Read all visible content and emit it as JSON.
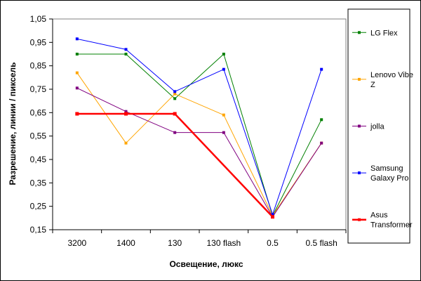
{
  "chart_data": {
    "type": "line",
    "title": "",
    "xlabel": "Освещение, люкс",
    "ylabel": "Разрешение, линии / пиксель",
    "categories": [
      "3200",
      "1400",
      "130",
      "130 flash",
      "0.5",
      "0.5 flash"
    ],
    "ylim": [
      0.15,
      1.05
    ],
    "yticks": [
      0.15,
      0.25,
      0.35,
      0.45,
      0.55,
      0.65,
      0.75,
      0.85,
      0.95,
      1.05
    ],
    "ytick_labels": [
      "0,15",
      "0,25",
      "0,35",
      "0,45",
      "0,55",
      "0,65",
      "0,75",
      "0,85",
      "0,95",
      "1,05"
    ],
    "grid": false,
    "legend_position": "right",
    "series": [
      {
        "name": "LG Flex",
        "color": "#008000",
        "marker": "square",
        "values": [
          0.9,
          0.9,
          0.71,
          0.9,
          0.21,
          0.62
        ]
      },
      {
        "name": "Lenovo Vibe Z",
        "legend_lines": [
          "Lenovo Vibe",
          "Z"
        ],
        "color": "#FFA500",
        "marker": "square",
        "values": [
          0.82,
          0.52,
          0.73,
          0.64,
          0.21,
          0.52
        ]
      },
      {
        "name": "jolla",
        "legend_lines": [
          "jolla"
        ],
        "color": "#800080",
        "marker": "square",
        "values": [
          0.755,
          0.655,
          0.565,
          0.565,
          0.205,
          0.52
        ]
      },
      {
        "name": "Samsung Galaxy Pro",
        "legend_lines": [
          "Samsung",
          "Galaxy Pro"
        ],
        "color": "#0000FF",
        "marker": "square",
        "values": [
          0.965,
          0.92,
          0.74,
          0.835,
          0.215,
          0.835
        ]
      },
      {
        "name": "Asus Transformer",
        "legend_lines": [
          "Asus",
          "Transformer"
        ],
        "color": "#FF0000",
        "marker": "square",
        "bold": true,
        "values": [
          0.645,
          0.645,
          0.645,
          null,
          0.205,
          null
        ]
      }
    ]
  }
}
